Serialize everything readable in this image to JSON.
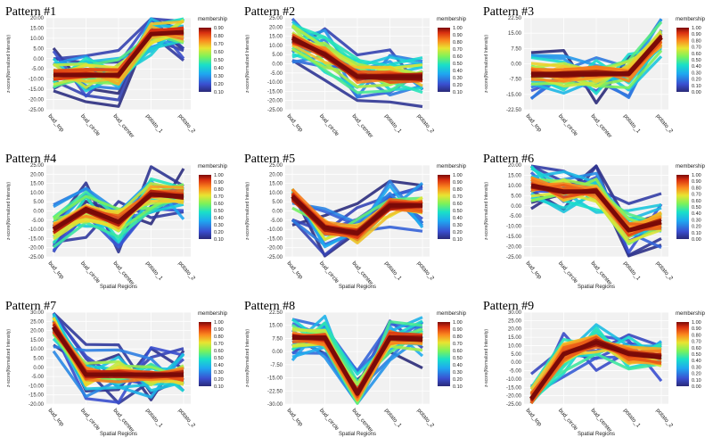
{
  "chart_data": [
    {
      "type": "line",
      "title": "Pattern #1",
      "xlabel": "",
      "ylabel": "z-score(Normalized Intensity)",
      "categories": [
        "bud_top",
        "bud_circle",
        "bud_center",
        "potato_1",
        "potato_2"
      ],
      "yticks": [
        "20.00",
        "15.00",
        "10.00",
        "5.00",
        "0.00",
        "-5.00",
        "-10.00",
        "-15.00",
        "-20.00",
        "-25.00"
      ],
      "ylim": [
        -25,
        20
      ],
      "centroid": [
        -8,
        -8,
        -8,
        12,
        13
      ],
      "colorbar": {
        "title": "membership",
        "ticks": [
          "0.90",
          "0.80",
          "0.70",
          "0.60",
          "0.50",
          "0.40",
          "0.30",
          "0.20",
          "0.10"
        ]
      }
    },
    {
      "type": "line",
      "title": "Pattern #2",
      "xlabel": "",
      "ylabel": "z-score(Normalized Intensity)",
      "categories": [
        "bud_top",
        "bud_circle",
        "bud_center",
        "potato_1",
        "potato_2"
      ],
      "yticks": [
        "25.00",
        "20.00",
        "15.00",
        "10.00",
        "5.00",
        "0.00",
        "-5.00",
        "-10.00",
        "-15.00",
        "-20.00",
        "-25.00"
      ],
      "ylim": [
        -25,
        25
      ],
      "centroid": [
        14,
        5,
        -7,
        -7,
        -7
      ],
      "colorbar": {
        "title": "membership",
        "ticks": [
          "1.00",
          "0.90",
          "0.80",
          "0.70",
          "0.60",
          "0.50",
          "0.40",
          "0.30",
          "0.20",
          "0.10"
        ]
      }
    },
    {
      "type": "line",
      "title": "Pattern #3",
      "xlabel": "",
      "ylabel": "z-score(Normalized Intensity)",
      "categories": [
        "bud_top",
        "bud_circle",
        "bud_center",
        "potato_1",
        "potato_2"
      ],
      "yticks": [
        "22.50",
        "15.00",
        "7.50",
        "0.00",
        "-7.50",
        "-15.00",
        "-22.50"
      ],
      "ylim": [
        -22.5,
        22.5
      ],
      "centroid": [
        -5,
        -5,
        -5,
        -5,
        13
      ],
      "colorbar": {
        "title": "membership",
        "ticks": [
          "1.00",
          "0.90",
          "0.80",
          "0.70",
          "0.60",
          "0.50",
          "0.40",
          "0.30",
          "0.20",
          "0.10",
          "0.00"
        ]
      }
    },
    {
      "type": "line",
      "title": "Pattern #4",
      "xlabel": "Spatial Regions",
      "ylabel": "z-score(Normalized Intensity)",
      "categories": [
        "bud_top",
        "bud_circle",
        "bud_center",
        "potato_1",
        "potato_2"
      ],
      "yticks": [
        "25.00",
        "20.00",
        "15.00",
        "10.00",
        "5.00",
        "0.00",
        "-5.00",
        "-10.00",
        "-15.00",
        "-20.00",
        "-25.00"
      ],
      "ylim": [
        -25,
        25
      ],
      "centroid": [
        -10,
        1,
        -6,
        9,
        8
      ],
      "colorbar": {
        "title": "membership",
        "ticks": [
          "1.00",
          "0.90",
          "0.80",
          "0.70",
          "0.60",
          "0.50",
          "0.40",
          "0.30",
          "0.20",
          "0.10"
        ]
      }
    },
    {
      "type": "line",
      "title": "Pattern #5",
      "xlabel": "Spatial Regions",
      "ylabel": "z-score(Normalized Intensity)",
      "categories": [
        "bud_top",
        "bud_circle",
        "bud_center",
        "potato_1",
        "potato_2"
      ],
      "yticks": [
        "25.00",
        "20.00",
        "15.00",
        "10.00",
        "5.00",
        "0.00",
        "-5.00",
        "-10.00",
        "-15.00",
        "-20.00",
        "-25.00"
      ],
      "ylim": [
        -25,
        25
      ],
      "centroid": [
        8,
        -9,
        -12,
        3,
        3
      ],
      "colorbar": {
        "title": "membership",
        "ticks": [
          "1.00",
          "0.90",
          "0.80",
          "0.70",
          "0.60",
          "0.50",
          "0.40",
          "0.30",
          "0.20",
          "0.10"
        ]
      }
    },
    {
      "type": "line",
      "title": "Pattern #6",
      "xlabel": "Spatial Regions",
      "ylabel": "z-score(Normalized Intensity)",
      "categories": [
        "bud_top",
        "bud_circle",
        "bud_center",
        "potato_1",
        "potato_2"
      ],
      "yticks": [
        "20.00",
        "15.00",
        "10.00",
        "5.00",
        "0.00",
        "-5.00",
        "-10.00",
        "-15.00",
        "-20.00",
        "-25.00"
      ],
      "ylim": [
        -25,
        20
      ],
      "centroid": [
        10,
        7,
        7,
        -12,
        -8
      ],
      "colorbar": {
        "title": "membership",
        "ticks": [
          "1.00",
          "0.90",
          "0.80",
          "0.70",
          "0.60",
          "0.50",
          "0.40",
          "0.30",
          "0.20",
          "0.10",
          "0.00"
        ]
      }
    },
    {
      "type": "line",
      "title": "Pattern #7",
      "xlabel": "Spatial Regions",
      "ylabel": "z-score(Normalized Intensity)",
      "categories": [
        "bud_top",
        "bud_circle",
        "bud_center",
        "potato_1",
        "potato_2"
      ],
      "yticks": [
        "30.00",
        "25.00",
        "20.00",
        "15.00",
        "10.00",
        "5.00",
        "0.00",
        "-5.00",
        "-10.00",
        "-15.00",
        "-20.00"
      ],
      "ylim": [
        -20,
        30
      ],
      "centroid": [
        22,
        -4,
        -4,
        -4,
        -4
      ],
      "colorbar": {
        "title": "membership",
        "ticks": [
          "1.00",
          "0.90",
          "0.80",
          "0.70",
          "0.60",
          "0.50",
          "0.40",
          "0.30",
          "0.20",
          "0.10"
        ]
      }
    },
    {
      "type": "line",
      "title": "Pattern #8",
      "xlabel": "Spatial Regions",
      "ylabel": "z-score(Normalized Intensity)",
      "categories": [
        "bud_top",
        "bud_circle",
        "bud_center",
        "potato_1",
        "potato_2"
      ],
      "yticks": [
        "22.50",
        "15.00",
        "7.50",
        "0.00",
        "-7.50",
        "-15.00",
        "-22.50",
        "-30.00"
      ],
      "ylim": [
        -30,
        22.5
      ],
      "centroid": [
        8,
        8,
        -24,
        8,
        7
      ],
      "colorbar": {
        "title": "membership",
        "ticks": [
          "1.00",
          "0.90",
          "0.80",
          "0.70",
          "0.60",
          "0.50",
          "0.40",
          "0.30",
          "0.20",
          "0.10"
        ]
      }
    },
    {
      "type": "line",
      "title": "Pattern #9",
      "xlabel": "Spatial Regions",
      "ylabel": "z-score(Normalized Intensity)",
      "categories": [
        "bud_top",
        "bud_circle",
        "bud_center",
        "potato_1",
        "potato_2"
      ],
      "yticks": [
        "30.00",
        "25.00",
        "20.00",
        "15.00",
        "10.00",
        "5.00",
        "0.00",
        "-5.00",
        "-10.00",
        "-15.00",
        "-20.00",
        "-25.00"
      ],
      "ylim": [
        -25,
        30
      ],
      "centroid": [
        -22,
        5,
        12,
        5,
        3
      ],
      "colorbar": {
        "title": "membership",
        "ticks": [
          "1.00",
          "0.90",
          "0.80",
          "0.70",
          "0.60",
          "0.50",
          "0.40",
          "0.30",
          "0.20",
          "0.10",
          "0.00"
        ]
      }
    }
  ]
}
